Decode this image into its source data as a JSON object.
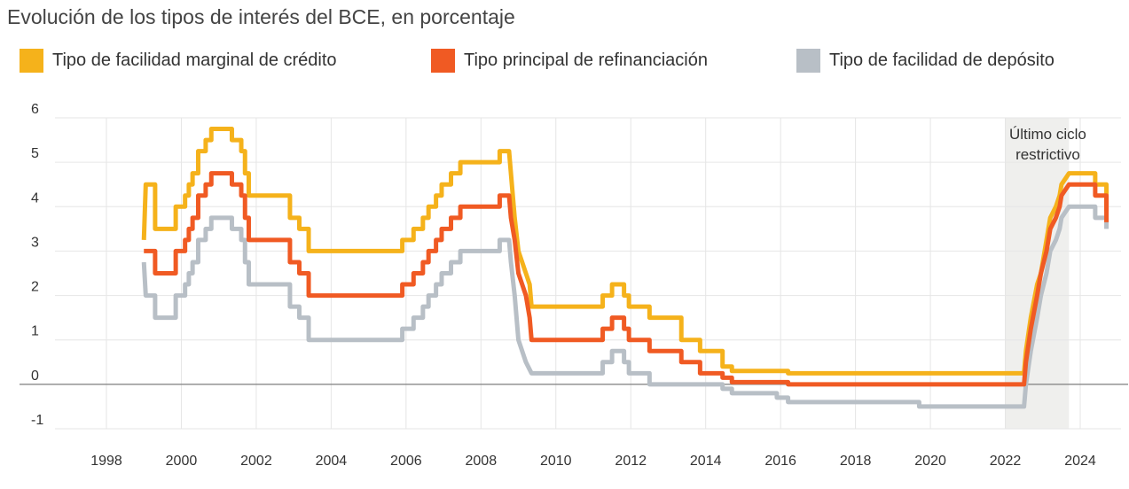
{
  "chart_data": {
    "type": "line",
    "title": "Evolución de los tipos de interés del BCE, en porcentaje",
    "xlabel": "",
    "ylabel": "",
    "xlim": [
      1998,
      2024.5
    ],
    "ylim": [
      -1,
      6
    ],
    "x_ticks": [
      "1998",
      "2000",
      "2002",
      "2004",
      "2006",
      "2008",
      "2010",
      "2012",
      "2014",
      "2016",
      "2018",
      "2020",
      "2022",
      "2024"
    ],
    "y_ticks": [
      "6",
      "5",
      "4",
      "3",
      "2",
      "1",
      "0",
      "-1"
    ],
    "grid": true,
    "legend_position": "top",
    "annotation": {
      "lines": [
        "Último ciclo",
        "restrictivo"
      ],
      "x_range": [
        2022.0,
        2023.7
      ]
    },
    "series": [
      {
        "name": "Tipo de facilidad marginal de crédito",
        "color": "#f5b21b",
        "points": [
          [
            1999.0,
            3.25
          ],
          [
            1999.05,
            4.5
          ],
          [
            1999.3,
            4.5
          ],
          [
            1999.3,
            3.5
          ],
          [
            1999.85,
            3.5
          ],
          [
            1999.85,
            4.0
          ],
          [
            2000.1,
            4.0
          ],
          [
            2000.1,
            4.25
          ],
          [
            2000.2,
            4.25
          ],
          [
            2000.2,
            4.5
          ],
          [
            2000.3,
            4.5
          ],
          [
            2000.3,
            4.75
          ],
          [
            2000.45,
            4.75
          ],
          [
            2000.45,
            5.25
          ],
          [
            2000.65,
            5.25
          ],
          [
            2000.65,
            5.5
          ],
          [
            2000.8,
            5.5
          ],
          [
            2000.8,
            5.75
          ],
          [
            2001.35,
            5.75
          ],
          [
            2001.35,
            5.5
          ],
          [
            2001.6,
            5.5
          ],
          [
            2001.6,
            5.25
          ],
          [
            2001.7,
            5.25
          ],
          [
            2001.7,
            4.75
          ],
          [
            2001.8,
            4.75
          ],
          [
            2001.8,
            4.25
          ],
          [
            2002.9,
            4.25
          ],
          [
            2002.9,
            3.75
          ],
          [
            2003.15,
            3.75
          ],
          [
            2003.15,
            3.5
          ],
          [
            2003.4,
            3.5
          ],
          [
            2003.4,
            3.0
          ],
          [
            2005.9,
            3.0
          ],
          [
            2005.9,
            3.25
          ],
          [
            2006.2,
            3.25
          ],
          [
            2006.2,
            3.5
          ],
          [
            2006.45,
            3.5
          ],
          [
            2006.45,
            3.75
          ],
          [
            2006.6,
            3.75
          ],
          [
            2006.6,
            4.0
          ],
          [
            2006.8,
            4.0
          ],
          [
            2006.8,
            4.25
          ],
          [
            2006.95,
            4.25
          ],
          [
            2006.95,
            4.5
          ],
          [
            2007.2,
            4.5
          ],
          [
            2007.2,
            4.75
          ],
          [
            2007.45,
            4.75
          ],
          [
            2007.45,
            5.0
          ],
          [
            2008.5,
            5.0
          ],
          [
            2008.5,
            5.25
          ],
          [
            2008.75,
            5.25
          ],
          [
            2008.8,
            4.75
          ],
          [
            2008.9,
            3.75
          ],
          [
            2009.0,
            3.0
          ],
          [
            2009.2,
            2.5
          ],
          [
            2009.3,
            2.25
          ],
          [
            2009.35,
            1.75
          ],
          [
            2011.25,
            1.75
          ],
          [
            2011.25,
            2.0
          ],
          [
            2011.5,
            2.0
          ],
          [
            2011.5,
            2.25
          ],
          [
            2011.82,
            2.25
          ],
          [
            2011.82,
            2.0
          ],
          [
            2011.95,
            2.0
          ],
          [
            2011.95,
            1.75
          ],
          [
            2012.5,
            1.75
          ],
          [
            2012.5,
            1.5
          ],
          [
            2013.35,
            1.5
          ],
          [
            2013.35,
            1.0
          ],
          [
            2013.85,
            1.0
          ],
          [
            2013.85,
            0.75
          ],
          [
            2014.45,
            0.75
          ],
          [
            2014.45,
            0.4
          ],
          [
            2014.7,
            0.4
          ],
          [
            2014.7,
            0.3
          ],
          [
            2016.2,
            0.3
          ],
          [
            2016.2,
            0.25
          ],
          [
            2022.5,
            0.25
          ],
          [
            2022.55,
            0.75
          ],
          [
            2022.68,
            1.5
          ],
          [
            2022.85,
            2.25
          ],
          [
            2022.95,
            2.5
          ],
          [
            2023.1,
            3.25
          ],
          [
            2023.2,
            3.75
          ],
          [
            2023.35,
            4.0
          ],
          [
            2023.45,
            4.25
          ],
          [
            2023.5,
            4.5
          ],
          [
            2023.7,
            4.75
          ],
          [
            2024.4,
            4.75
          ],
          [
            2024.4,
            4.5
          ],
          [
            2024.7,
            4.5
          ],
          [
            2024.7,
            3.9
          ]
        ]
      },
      {
        "name": "Tipo principal de refinanciación",
        "color": "#f05a23",
        "points": [
          [
            1999.0,
            3.0
          ],
          [
            1999.3,
            3.0
          ],
          [
            1999.3,
            2.5
          ],
          [
            1999.85,
            2.5
          ],
          [
            1999.85,
            3.0
          ],
          [
            2000.1,
            3.0
          ],
          [
            2000.1,
            3.25
          ],
          [
            2000.2,
            3.25
          ],
          [
            2000.2,
            3.5
          ],
          [
            2000.3,
            3.5
          ],
          [
            2000.3,
            3.75
          ],
          [
            2000.45,
            3.75
          ],
          [
            2000.45,
            4.25
          ],
          [
            2000.65,
            4.25
          ],
          [
            2000.65,
            4.5
          ],
          [
            2000.8,
            4.5
          ],
          [
            2000.8,
            4.75
          ],
          [
            2001.35,
            4.75
          ],
          [
            2001.35,
            4.5
          ],
          [
            2001.6,
            4.5
          ],
          [
            2001.6,
            4.25
          ],
          [
            2001.7,
            4.25
          ],
          [
            2001.7,
            3.75
          ],
          [
            2001.8,
            3.75
          ],
          [
            2001.8,
            3.25
          ],
          [
            2002.9,
            3.25
          ],
          [
            2002.9,
            2.75
          ],
          [
            2003.15,
            2.75
          ],
          [
            2003.15,
            2.5
          ],
          [
            2003.4,
            2.5
          ],
          [
            2003.4,
            2.0
          ],
          [
            2005.9,
            2.0
          ],
          [
            2005.9,
            2.25
          ],
          [
            2006.2,
            2.25
          ],
          [
            2006.2,
            2.5
          ],
          [
            2006.45,
            2.5
          ],
          [
            2006.45,
            2.75
          ],
          [
            2006.6,
            2.75
          ],
          [
            2006.6,
            3.0
          ],
          [
            2006.8,
            3.0
          ],
          [
            2006.8,
            3.25
          ],
          [
            2006.95,
            3.25
          ],
          [
            2006.95,
            3.5
          ],
          [
            2007.2,
            3.5
          ],
          [
            2007.2,
            3.75
          ],
          [
            2007.45,
            3.75
          ],
          [
            2007.45,
            4.0
          ],
          [
            2008.5,
            4.0
          ],
          [
            2008.5,
            4.25
          ],
          [
            2008.75,
            4.25
          ],
          [
            2008.8,
            3.75
          ],
          [
            2008.9,
            3.25
          ],
          [
            2009.0,
            2.5
          ],
          [
            2009.2,
            2.0
          ],
          [
            2009.3,
            1.5
          ],
          [
            2009.35,
            1.0
          ],
          [
            2011.25,
            1.0
          ],
          [
            2011.25,
            1.25
          ],
          [
            2011.5,
            1.25
          ],
          [
            2011.5,
            1.5
          ],
          [
            2011.82,
            1.5
          ],
          [
            2011.82,
            1.25
          ],
          [
            2011.95,
            1.25
          ],
          [
            2011.95,
            1.0
          ],
          [
            2012.5,
            1.0
          ],
          [
            2012.5,
            0.75
          ],
          [
            2013.35,
            0.75
          ],
          [
            2013.35,
            0.5
          ],
          [
            2013.85,
            0.5
          ],
          [
            2013.85,
            0.25
          ],
          [
            2014.45,
            0.25
          ],
          [
            2014.45,
            0.15
          ],
          [
            2014.7,
            0.15
          ],
          [
            2014.7,
            0.05
          ],
          [
            2016.2,
            0.05
          ],
          [
            2016.2,
            0.0
          ],
          [
            2022.5,
            0.0
          ],
          [
            2022.55,
            0.5
          ],
          [
            2022.68,
            1.25
          ],
          [
            2022.85,
            2.0
          ],
          [
            2022.95,
            2.5
          ],
          [
            2023.1,
            3.0
          ],
          [
            2023.2,
            3.5
          ],
          [
            2023.35,
            3.75
          ],
          [
            2023.45,
            4.0
          ],
          [
            2023.5,
            4.25
          ],
          [
            2023.7,
            4.5
          ],
          [
            2024.4,
            4.5
          ],
          [
            2024.4,
            4.25
          ],
          [
            2024.7,
            4.25
          ],
          [
            2024.7,
            3.65
          ]
        ]
      },
      {
        "name": "Tipo de facilidad de depósito",
        "color": "#b8bfc6",
        "points": [
          [
            1999.0,
            2.75
          ],
          [
            1999.05,
            2.0
          ],
          [
            1999.3,
            2.0
          ],
          [
            1999.3,
            1.5
          ],
          [
            1999.85,
            1.5
          ],
          [
            1999.85,
            2.0
          ],
          [
            2000.1,
            2.0
          ],
          [
            2000.1,
            2.25
          ],
          [
            2000.2,
            2.25
          ],
          [
            2000.2,
            2.5
          ],
          [
            2000.3,
            2.5
          ],
          [
            2000.3,
            2.75
          ],
          [
            2000.45,
            2.75
          ],
          [
            2000.45,
            3.25
          ],
          [
            2000.65,
            3.25
          ],
          [
            2000.65,
            3.5
          ],
          [
            2000.8,
            3.5
          ],
          [
            2000.8,
            3.75
          ],
          [
            2001.35,
            3.75
          ],
          [
            2001.35,
            3.5
          ],
          [
            2001.6,
            3.5
          ],
          [
            2001.6,
            3.25
          ],
          [
            2001.7,
            3.25
          ],
          [
            2001.7,
            2.75
          ],
          [
            2001.8,
            2.75
          ],
          [
            2001.8,
            2.25
          ],
          [
            2002.9,
            2.25
          ],
          [
            2002.9,
            1.75
          ],
          [
            2003.15,
            1.75
          ],
          [
            2003.15,
            1.5
          ],
          [
            2003.4,
            1.5
          ],
          [
            2003.4,
            1.0
          ],
          [
            2005.9,
            1.0
          ],
          [
            2005.9,
            1.25
          ],
          [
            2006.2,
            1.25
          ],
          [
            2006.2,
            1.5
          ],
          [
            2006.45,
            1.5
          ],
          [
            2006.45,
            1.75
          ],
          [
            2006.6,
            1.75
          ],
          [
            2006.6,
            2.0
          ],
          [
            2006.8,
            2.0
          ],
          [
            2006.8,
            2.25
          ],
          [
            2006.95,
            2.25
          ],
          [
            2006.95,
            2.5
          ],
          [
            2007.2,
            2.5
          ],
          [
            2007.2,
            2.75
          ],
          [
            2007.45,
            2.75
          ],
          [
            2007.45,
            3.0
          ],
          [
            2008.5,
            3.0
          ],
          [
            2008.5,
            3.25
          ],
          [
            2008.75,
            3.25
          ],
          [
            2008.8,
            2.75
          ],
          [
            2008.9,
            2.0
          ],
          [
            2009.0,
            1.0
          ],
          [
            2009.2,
            0.5
          ],
          [
            2009.35,
            0.25
          ],
          [
            2011.25,
            0.25
          ],
          [
            2011.25,
            0.5
          ],
          [
            2011.5,
            0.5
          ],
          [
            2011.5,
            0.75
          ],
          [
            2011.82,
            0.75
          ],
          [
            2011.82,
            0.5
          ],
          [
            2011.95,
            0.5
          ],
          [
            2011.95,
            0.25
          ],
          [
            2012.5,
            0.25
          ],
          [
            2012.5,
            0.0
          ],
          [
            2014.45,
            0.0
          ],
          [
            2014.45,
            -0.1
          ],
          [
            2014.7,
            -0.1
          ],
          [
            2014.7,
            -0.2
          ],
          [
            2015.9,
            -0.2
          ],
          [
            2015.9,
            -0.3
          ],
          [
            2016.2,
            -0.3
          ],
          [
            2016.2,
            -0.4
          ],
          [
            2019.7,
            -0.4
          ],
          [
            2019.7,
            -0.5
          ],
          [
            2022.5,
            -0.5
          ],
          [
            2022.55,
            0.0
          ],
          [
            2022.68,
            0.75
          ],
          [
            2022.85,
            1.5
          ],
          [
            2022.95,
            2.0
          ],
          [
            2023.1,
            2.5
          ],
          [
            2023.2,
            3.0
          ],
          [
            2023.35,
            3.25
          ],
          [
            2023.45,
            3.5
          ],
          [
            2023.5,
            3.75
          ],
          [
            2023.7,
            4.0
          ],
          [
            2024.4,
            4.0
          ],
          [
            2024.4,
            3.75
          ],
          [
            2024.7,
            3.75
          ],
          [
            2024.7,
            3.5
          ]
        ]
      }
    ]
  }
}
